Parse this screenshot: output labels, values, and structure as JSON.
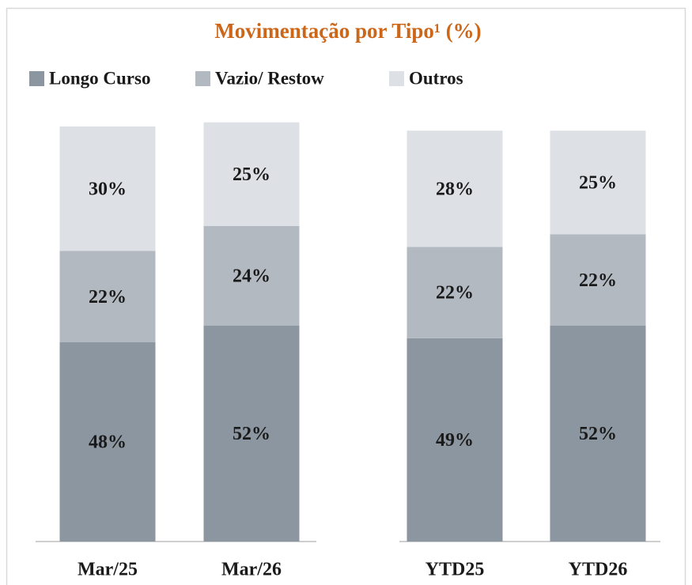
{
  "chart_data": {
    "type": "stacked_bar",
    "title": "Movimentação por Tipo¹ (%)",
    "categories": [
      "Mar/25",
      "Mar/26",
      "YTD25",
      "YTD26"
    ],
    "ylim": [
      0,
      100
    ],
    "series": [
      {
        "name": "Longo Curso",
        "color": "#8c96a0",
        "values": [
          48,
          52,
          49,
          52
        ],
        "value_labels": [
          "48%",
          "52%",
          "49%",
          "52%"
        ]
      },
      {
        "name": "Vazio/ Restow",
        "color": "#b3b9c1",
        "values": [
          22,
          24,
          22,
          22
        ],
        "value_labels": [
          "22%",
          "24%",
          "22%",
          "22%"
        ]
      },
      {
        "name": "Outros",
        "color": "#dde0e4",
        "values": [
          30,
          25,
          28,
          25
        ],
        "value_labels": [
          "30%",
          "25%",
          "28%",
          "25%"
        ]
      }
    ]
  }
}
